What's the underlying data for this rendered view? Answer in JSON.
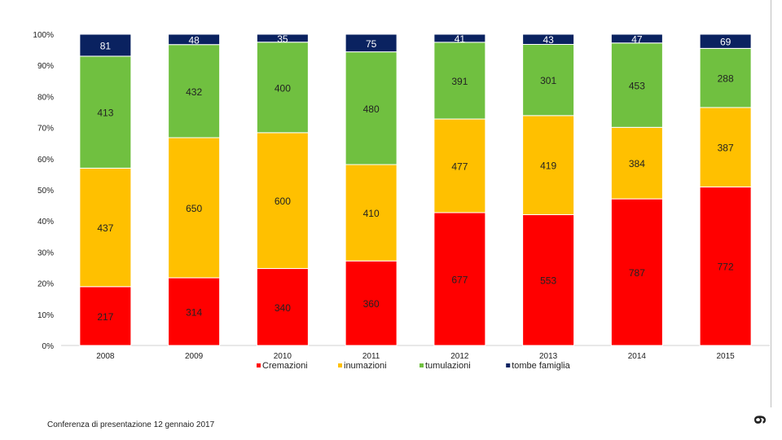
{
  "slide": {
    "footer": "Conferenza di presentazione 12 gennaio 2017",
    "page_number": "9"
  },
  "chart_data": {
    "type": "bar",
    "stacked": "percent",
    "title": "",
    "xlabel": "",
    "ylabel": "",
    "ylim": [
      0,
      100
    ],
    "y_ticks": [
      "0%",
      "10%",
      "20%",
      "30%",
      "40%",
      "50%",
      "60%",
      "70%",
      "80%",
      "90%",
      "100%"
    ],
    "categories": [
      "2008",
      "2009",
      "2010",
      "2011",
      "2012",
      "2013",
      "2014",
      "2015"
    ],
    "legend_position": "bottom",
    "series": [
      {
        "name": "Cremazioni",
        "color": "#ff0000",
        "values": [
          217,
          314,
          340,
          360,
          677,
          553,
          787,
          772
        ]
      },
      {
        "name": "inumazioni",
        "color": "#ffc000",
        "values": [
          437,
          650,
          600,
          410,
          477,
          419,
          384,
          387
        ]
      },
      {
        "name": "tumulazioni",
        "color": "#70c040",
        "values": [
          413,
          432,
          400,
          480,
          391,
          301,
          453,
          288
        ]
      },
      {
        "name": "tombe famiglia",
        "color": "#0a2260",
        "values": [
          81,
          48,
          35,
          75,
          41,
          43,
          47,
          69
        ]
      }
    ]
  }
}
